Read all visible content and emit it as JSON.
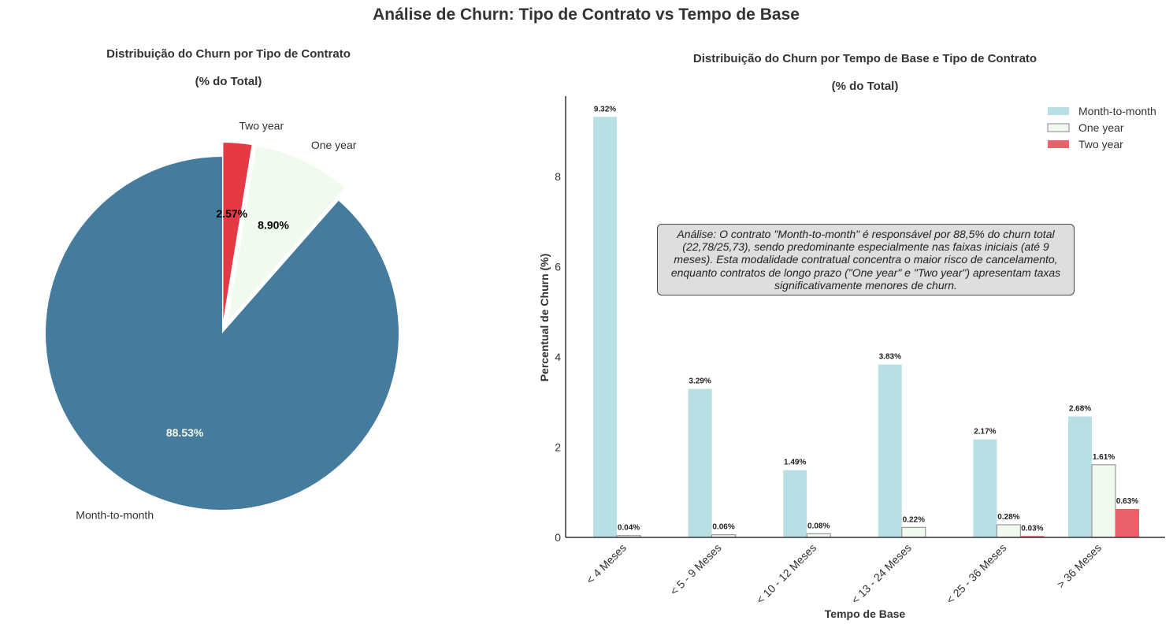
{
  "figure": {
    "suptitle": "Análise de Churn: Tipo de Contrato vs Tempo de Base"
  },
  "chart_data": [
    {
      "type": "pie",
      "title_line1": "Distribuição do Churn por Tipo de Contrato",
      "title_line2": "(% do Total)",
      "slices": [
        {
          "label": "Month-to-month",
          "value": 88.53,
          "pct_text": "88.53%",
          "color": "#457b9d",
          "pct_color": "#f1faee"
        },
        {
          "label": "One year",
          "value": 8.9,
          "pct_text": "8.90%",
          "color": "#f1faee",
          "pct_color": "#000000"
        },
        {
          "label": "Two year",
          "value": 2.57,
          "pct_text": "2.57%",
          "color": "#e63946",
          "pct_color": "#000000"
        }
      ]
    },
    {
      "type": "bar",
      "title_line1": "Distribuição do Churn por Tempo de Base e Tipo de Contrato",
      "title_line2": "(% do Total)",
      "xlabel": "Tempo de Base",
      "ylabel": "Percentual de Churn (%)",
      "categories": [
        "< 4 Meses",
        "< 5 - 9 Meses",
        "< 10 - 12 Meses",
        "< 13 - 24 Meses",
        "< 25 - 36 Meses",
        "> 36 Meses"
      ],
      "yticks": [
        0,
        2,
        4,
        6,
        8
      ],
      "ylim": [
        0,
        9.78
      ],
      "legend_position": "top-right",
      "series": [
        {
          "name": "Month-to-month",
          "color": "#b8dfe3",
          "edge": "none",
          "values": [
            9.32,
            3.29,
            1.49,
            3.83,
            2.17,
            2.68
          ],
          "labels": [
            "9.32%",
            "3.29%",
            "1.49%",
            "3.83%",
            "2.17%",
            "2.68%"
          ]
        },
        {
          "name": "One year",
          "color": "#f1faee",
          "edge": "#999999",
          "values": [
            0.04,
            0.06,
            0.08,
            0.22,
            0.28,
            1.61
          ],
          "labels": [
            "0.04%",
            "0.06%",
            "0.08%",
            "0.22%",
            "0.28%",
            "1.61%"
          ]
        },
        {
          "name": "Two year",
          "color": "#e9616b",
          "edge": "none",
          "values": [
            null,
            null,
            null,
            null,
            0.03,
            0.63
          ],
          "labels": [
            null,
            null,
            null,
            null,
            "0.03%",
            "0.63%"
          ]
        }
      ],
      "annotation": "Análise: O contrato \"Month-to-month\" é responsável por 88,5% do churn total (22,78/25,73), sendo predominante especialmente nas faixas iniciais (até 9 meses). Esta modalidade contratual concentra o maior risco de cancelamento, enquanto contratos de longo prazo (\"One year\" e \"Two year\") apresentam taxas significativamente menores de churn."
    }
  ]
}
